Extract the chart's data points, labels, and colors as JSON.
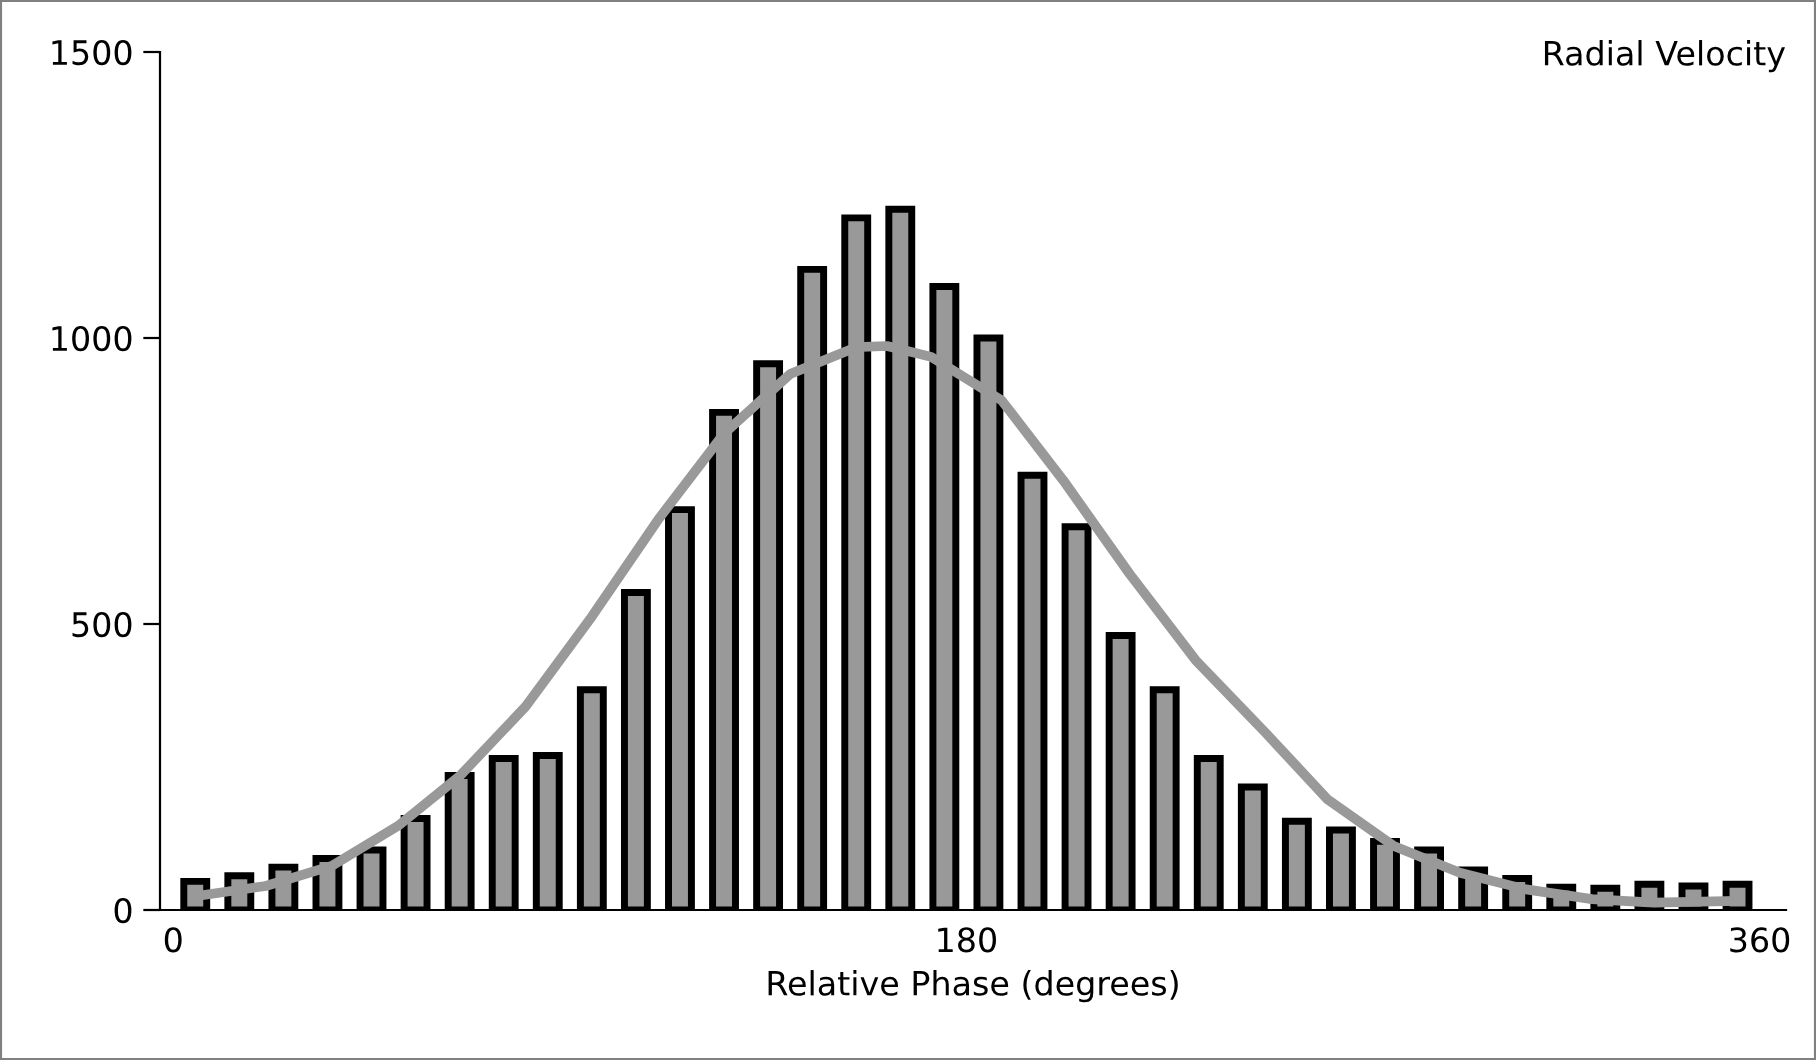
{
  "chart_data": {
    "type": "bar",
    "title": "Radial Velocity",
    "xlabel": "Relative Phase (degrees)",
    "x": [
      5,
      15,
      25,
      35,
      45,
      55,
      65,
      75,
      85,
      95,
      105,
      115,
      125,
      135,
      145,
      155,
      165,
      175,
      185,
      195,
      205,
      215,
      225,
      235,
      245,
      255,
      265,
      275,
      285,
      295,
      305,
      315,
      325,
      335,
      345,
      355
    ],
    "series": [
      {
        "color": "#999999",
        "values": [
          50,
          60,
          75,
          90,
          105,
          160,
          235,
          265,
          270,
          385,
          555,
          700,
          870,
          955,
          1120,
          1210,
          1225,
          1090,
          1000,
          760,
          670,
          480,
          385,
          265,
          215,
          155,
          140,
          120,
          105,
          70,
          55,
          40,
          38,
          45,
          42,
          45
        ]
      },
      {
        "type": "line",
        "color": "#999999",
        "x": [
          5,
          21,
          36,
          51,
          65,
          80,
          95,
          110,
          125,
          140,
          155,
          162,
          172,
          188,
          202,
          217,
          232,
          248,
          262,
          277,
          292,
          307,
          322,
          336,
          355
        ],
        "values": [
          24,
          42,
          77,
          147,
          234,
          356,
          513,
          682,
          833,
          937,
          984,
          986,
          967,
          891,
          751,
          588,
          437,
          309,
          193,
          112,
          65,
          36,
          19,
          13,
          16
        ]
      }
    ],
    "xlim": [
      -3,
      366
    ],
    "xticks": [
      0,
      180,
      360
    ],
    "ylim": [
      0,
      1500
    ],
    "yticks": [
      0,
      500,
      1000,
      1500
    ],
    "grid": false,
    "legend": false
  }
}
